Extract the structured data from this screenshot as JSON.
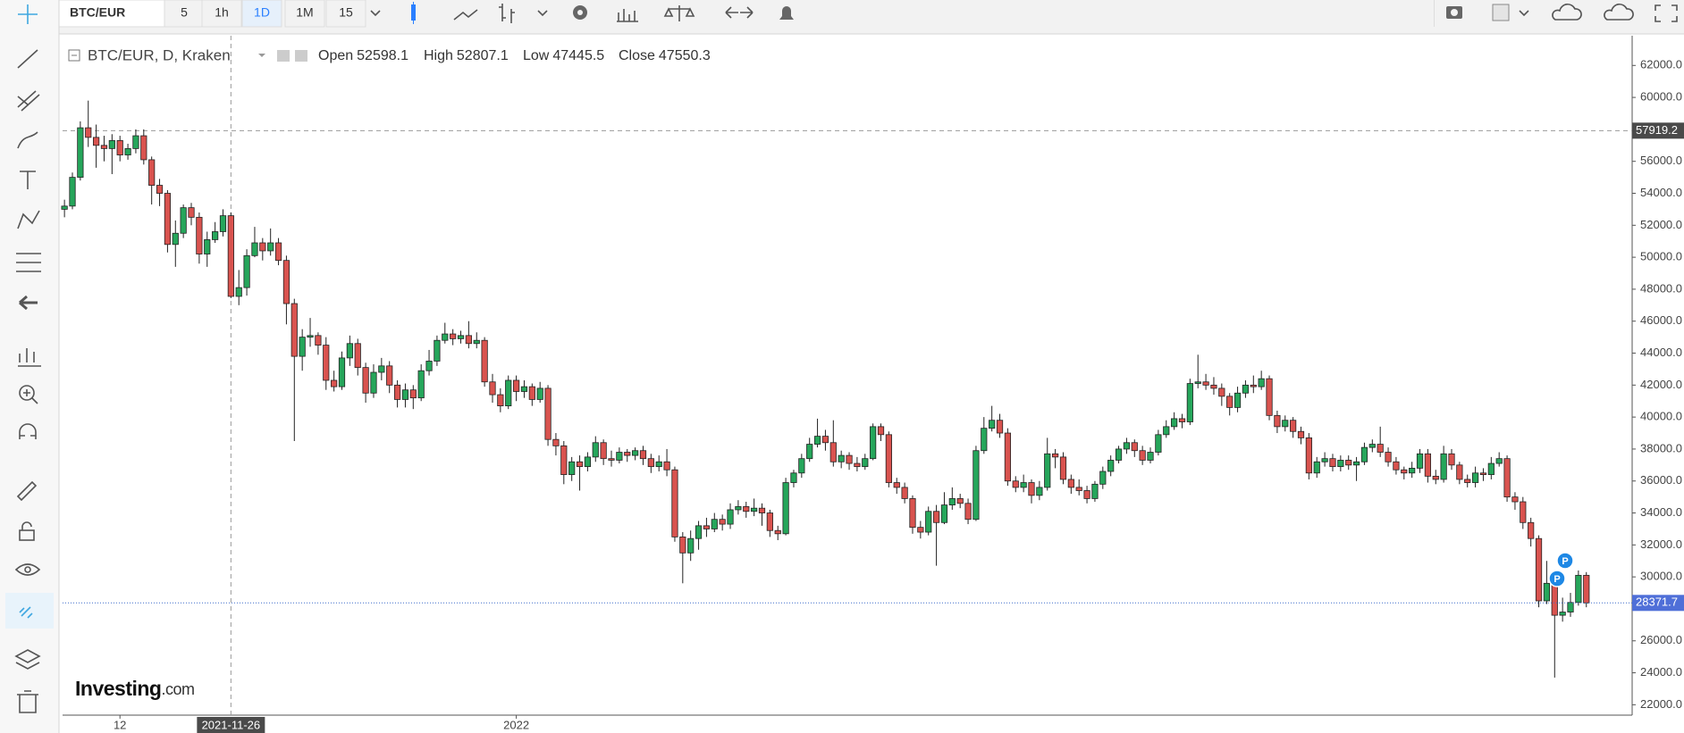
{
  "toolbar": {
    "symbol": "BTC/EUR",
    "intervals": [
      "5",
      "1h",
      "1D",
      "1M",
      "15"
    ]
  },
  "watermark": {
    "brand": "Investing",
    "suffix": ".com"
  },
  "markers": [
    "P",
    "P"
  ],
  "chart_data": {
    "type": "candlestick",
    "title": "BTC/EUR, D, Kraken",
    "legend_labels": [
      "Open",
      "High",
      "Low",
      "Close"
    ],
    "up_color": "#26a65b",
    "down_color": "#d9534f",
    "xlim": [
      -0.24,
      197.78
    ],
    "xticks": [
      {
        "value": 7,
        "label": "12"
      },
      {
        "value": 57,
        "label": "2022"
      }
    ],
    "ylim": [
      21350,
      63860
    ],
    "yticks": [
      {
        "value": 22000,
        "label": "22000.0"
      },
      {
        "value": 24000,
        "label": "24000.0"
      },
      {
        "value": 26000,
        "label": "26000.0"
      },
      {
        "value": 30000,
        "label": "30000.0"
      },
      {
        "value": 32000,
        "label": "32000.0"
      },
      {
        "value": 34000,
        "label": "34000.0"
      },
      {
        "value": 36000,
        "label": "36000.0"
      },
      {
        "value": 38000,
        "label": "38000.0"
      },
      {
        "value": 40000,
        "label": "40000.0"
      },
      {
        "value": 42000,
        "label": "42000.0"
      },
      {
        "value": 44000,
        "label": "44000.0"
      },
      {
        "value": 46000,
        "label": "46000.0"
      },
      {
        "value": 48000,
        "label": "48000.0"
      },
      {
        "value": 50000,
        "label": "50000.0"
      },
      {
        "value": 52000,
        "label": "52000.0"
      },
      {
        "value": 54000,
        "label": "54000.0"
      },
      {
        "value": 56000,
        "label": "56000.0"
      },
      {
        "value": 60000,
        "label": "60000.0"
      },
      {
        "value": 62000,
        "label": "62000.0"
      }
    ],
    "crosshair": {
      "x": {
        "value": 21,
        "label": "2021-11-26"
      },
      "y": 57919.2
    },
    "legend_index": 21,
    "open": [
      53000,
      53200,
      55000,
      58100,
      57500,
      57000,
      56800,
      57300,
      56400,
      56800,
      57600,
      56100,
      54500,
      54000,
      50800,
      51500,
      53100,
      52500,
      50200,
      51100,
      51600,
      52598.1,
      47550.3,
      48100,
      50100,
      50900,
      50400,
      50900,
      49800,
      47100,
      43800,
      45000,
      45100,
      44500,
      42300,
      41900,
      43700,
      44600,
      43100,
      41500,
      42800,
      43200,
      42000,
      41100,
      41700,
      41200,
      42900,
      43500,
      44800,
      45200,
      44900,
      45100,
      44600,
      44800,
      42200,
      41400,
      40700,
      42300,
      41600,
      41900,
      41100,
      41800,
      38600,
      38200,
      36400,
      37200,
      36900,
      37500,
      38400,
      37400,
      37300,
      37800,
      37600,
      37900,
      37400,
      36900,
      37200,
      36700,
      32500,
      31500,
      32400,
      33200,
      33000,
      33600,
      33300,
      34200,
      34400,
      34100,
      34300,
      34000,
      32900,
      32700,
      35900,
      36500,
      37400,
      38300,
      38800,
      38400,
      37200,
      37600,
      37100,
      36900,
      37400,
      39400,
      38900,
      35900,
      35600,
      34900,
      33100,
      32800,
      34100,
      33400,
      34500,
      34900,
      34600,
      33600,
      37900,
      39300,
      39800,
      39000,
      36000,
      35600,
      35900,
      35100,
      35600,
      37700,
      37500,
      36100,
      35600,
      35400,
      34900,
      35800,
      36600,
      37300,
      38000,
      38400,
      37900,
      37300,
      37800,
      38900,
      39400,
      39900,
      39700,
      42100,
      42200,
      42000,
      41800,
      41300,
      40600,
      41500,
      42000,
      41900,
      42400,
      40100,
      39400,
      39800,
      39100,
      38700,
      36500,
      37200,
      37400,
      36900,
      37300,
      37000,
      37200,
      38100,
      38300,
      37800,
      37200,
      36700,
      36500,
      36800,
      37700,
      36300,
      36100,
      37700,
      37000,
      36100,
      35900,
      36500,
      36400,
      37100,
      37400,
      35000,
      34700,
      33400,
      32400,
      28500,
      29600,
      27600,
      27800,
      28400,
      30100
    ],
    "high": [
      53600,
      55300,
      58500,
      59800,
      58300,
      57600,
      57700,
      57600,
      57100,
      58000,
      58000,
      56300,
      54900,
      54200,
      52300,
      53300,
      53400,
      52800,
      51600,
      52200,
      53000,
      52807.1,
      49200,
      50500,
      51900,
      51200,
      51800,
      51200,
      50100,
      47400,
      45500,
      46200,
      45300,
      45000,
      42900,
      44100,
      45100,
      44900,
      43400,
      43300,
      43700,
      43500,
      42300,
      42100,
      42000,
      43300,
      44200,
      45100,
      45900,
      45500,
      45400,
      46000,
      45300,
      45000,
      42700,
      41800,
      42600,
      42600,
      42300,
      42100,
      42200,
      42000,
      39000,
      38500,
      37500,
      37600,
      37800,
      38800,
      38600,
      37900,
      38100,
      38000,
      38100,
      38200,
      37700,
      37600,
      38000,
      36900,
      32800,
      32900,
      33500,
      33700,
      34000,
      33900,
      34600,
      34800,
      34700,
      34900,
      34600,
      34200,
      33200,
      36200,
      36700,
      37700,
      38700,
      39900,
      39200,
      39800,
      37900,
      37800,
      37500,
      37700,
      39600,
      39600,
      39100,
      36200,
      35900,
      35100,
      33500,
      34400,
      34500,
      35300,
      35600,
      35200,
      34900,
      38200,
      40000,
      40700,
      40200,
      39300,
      36300,
      36400,
      36100,
      36000,
      38700,
      38000,
      37800,
      36400,
      36100,
      35700,
      36000,
      36900,
      37600,
      38200,
      38700,
      38600,
      38200,
      38100,
      39200,
      39800,
      40300,
      40200,
      42400,
      43900,
      42700,
      42500,
      42100,
      41500,
      41900,
      42300,
      42600,
      42900,
      42600,
      40400,
      40100,
      40000,
      39400,
      39000,
      37500,
      37800,
      37700,
      37600,
      37600,
      37500,
      38400,
      38600,
      39400,
      38100,
      37500,
      36900,
      37200,
      38000,
      38000,
      36700,
      38200,
      38000,
      37200,
      36400,
      36900,
      36800,
      37500,
      37800,
      37600,
      35300,
      35000,
      33700,
      32600,
      31000,
      30300,
      28700,
      29000,
      30400,
      30300
    ],
    "low": [
      52500,
      53000,
      54800,
      56900,
      55600,
      56000,
      55200,
      56000,
      56100,
      56500,
      55800,
      53300,
      53200,
      50300,
      49400,
      51200,
      52000,
      49600,
      49400,
      50900,
      51300,
      47445.5,
      47000,
      47600,
      50000,
      49800,
      50100,
      49500,
      45800,
      38500,
      42900,
      44400,
      43900,
      41700,
      41600,
      41700,
      43200,
      42600,
      40900,
      41200,
      42300,
      41500,
      40600,
      40600,
      40500,
      41000,
      42600,
      43200,
      44600,
      44500,
      44600,
      44300,
      44300,
      41900,
      40900,
      40300,
      40500,
      41000,
      41200,
      40700,
      40900,
      38200,
      37600,
      35800,
      36000,
      35400,
      36600,
      37200,
      37000,
      36900,
      37100,
      37200,
      37300,
      37000,
      36500,
      36600,
      36300,
      32200,
      29600,
      31000,
      31700,
      32500,
      32800,
      32900,
      33000,
      33900,
      33700,
      33800,
      33200,
      32500,
      32300,
      32600,
      35600,
      36200,
      37200,
      38100,
      37900,
      36900,
      36800,
      36700,
      36600,
      36700,
      37300,
      38500,
      35600,
      35200,
      34600,
      32700,
      32400,
      32600,
      30700,
      33300,
      34200,
      34300,
      33300,
      33500,
      37700,
      39100,
      38700,
      35700,
      35300,
      35300,
      34600,
      34800,
      35400,
      36800,
      35800,
      35200,
      35100,
      34600,
      34700,
      35500,
      36300,
      37100,
      37700,
      37500,
      37000,
      37100,
      37600,
      38700,
      39200,
      39300,
      39500,
      41800,
      41700,
      41400,
      40700,
      40100,
      40300,
      41200,
      41500,
      41700,
      39800,
      39000,
      39100,
      38700,
      38300,
      36100,
      36200,
      36900,
      36600,
      36600,
      36700,
      36000,
      37000,
      37800,
      37500,
      36900,
      36400,
      36100,
      36200,
      36500,
      35900,
      35800,
      35900,
      36700,
      35800,
      35600,
      35600,
      36000,
      36100,
      36900,
      34700,
      34200,
      33000,
      31900,
      28100,
      28300,
      23700,
      27200,
      27500,
      28200,
      28100
    ],
    "close": [
      53200,
      55000,
      58100,
      57500,
      57000,
      56800,
      57300,
      56400,
      56800,
      57600,
      56100,
      54500,
      54000,
      50800,
      51500,
      53100,
      52500,
      50200,
      51100,
      51600,
      52598.1,
      47550.3,
      48100,
      50100,
      50900,
      50400,
      50900,
      49800,
      47100,
      43800,
      45000,
      45100,
      44500,
      42300,
      41900,
      43700,
      44600,
      43100,
      41500,
      42800,
      43200,
      42000,
      41100,
      41700,
      41200,
      42900,
      43500,
      44800,
      45200,
      44900,
      45100,
      44600,
      44800,
      42200,
      41400,
      40700,
      42300,
      41600,
      41900,
      41100,
      41800,
      38600,
      38200,
      36400,
      37200,
      36900,
      37500,
      38400,
      37400,
      37300,
      37800,
      37600,
      37900,
      37400,
      36900,
      37200,
      36700,
      32500,
      31500,
      32400,
      33200,
      33000,
      33600,
      33300,
      34200,
      34400,
      34100,
      34300,
      34000,
      32900,
      32700,
      35900,
      36500,
      37400,
      38300,
      38800,
      38400,
      37200,
      37600,
      37100,
      36900,
      37400,
      39400,
      38900,
      35900,
      35600,
      34900,
      33100,
      32800,
      34100,
      33400,
      34500,
      34900,
      34600,
      33600,
      37900,
      39300,
      39800,
      39000,
      36000,
      35600,
      35900,
      35100,
      35600,
      37700,
      37500,
      36100,
      35600,
      35400,
      34900,
      35800,
      36600,
      37300,
      38000,
      38400,
      37900,
      37300,
      37800,
      38900,
      39400,
      39900,
      39700,
      42100,
      42200,
      42000,
      41800,
      41300,
      40600,
      41500,
      42000,
      41900,
      42400,
      40100,
      39400,
      39800,
      39100,
      38700,
      36500,
      37200,
      37400,
      36900,
      37300,
      37000,
      37200,
      38100,
      38300,
      37800,
      37200,
      36700,
      36500,
      36800,
      37700,
      36300,
      36100,
      37700,
      37000,
      36100,
      35900,
      36500,
      36400,
      37100,
      37400,
      35000,
      34700,
      33400,
      32400,
      28500,
      29600,
      27600,
      27800,
      28400,
      30100,
      28371.7
    ]
  }
}
